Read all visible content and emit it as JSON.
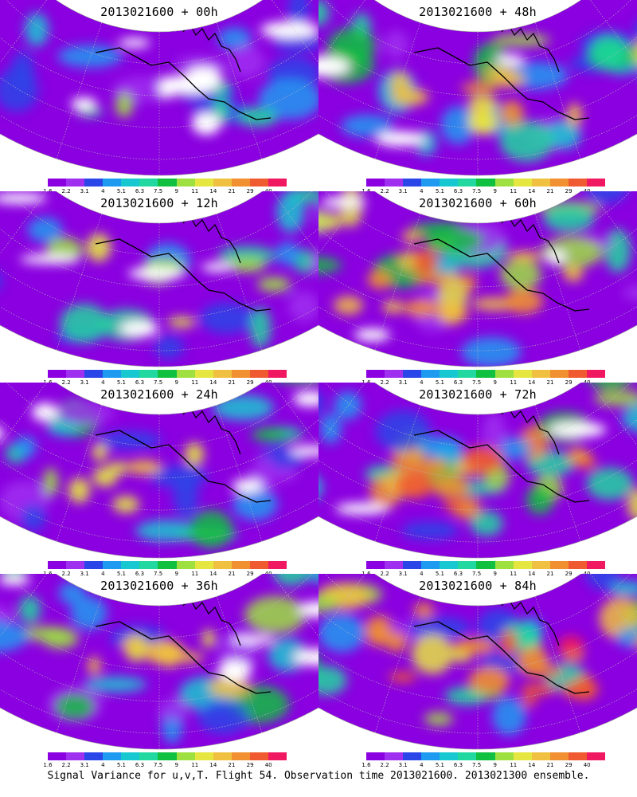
{
  "caption": "Signal Variance for u,v,T. Flight 54. Observation time 2013021600. 2013021300 ensemble.",
  "colorbar": {
    "colors": [
      "#8a00e0",
      "#a030f0",
      "#2a45e8",
      "#1e9bf0",
      "#18c8d0",
      "#20d8a0",
      "#10c040",
      "#9ee040",
      "#e6e640",
      "#f0c040",
      "#f09030",
      "#f05a30",
      "#f01860"
    ],
    "labels": [
      "1.6",
      "2.2",
      "3.1",
      "4",
      "5.1",
      "6.3",
      "7.5",
      "9",
      "11",
      "14",
      "21",
      "29",
      "40"
    ]
  },
  "panels": [
    {
      "title": "2013021600 + 00h",
      "intensity": 0.12
    },
    {
      "title": "2013021600 + 48h",
      "intensity": 0.62
    },
    {
      "title": "2013021600 + 12h",
      "intensity": 0.3
    },
    {
      "title": "2013021600 + 60h",
      "intensity": 0.68
    },
    {
      "title": "2013021600 + 24h",
      "intensity": 0.4
    },
    {
      "title": "2013021600 + 72h",
      "intensity": 0.78
    },
    {
      "title": "2013021600 + 36h",
      "intensity": 0.5
    },
    {
      "title": "2013021600 + 84h",
      "intensity": 0.86
    }
  ]
}
